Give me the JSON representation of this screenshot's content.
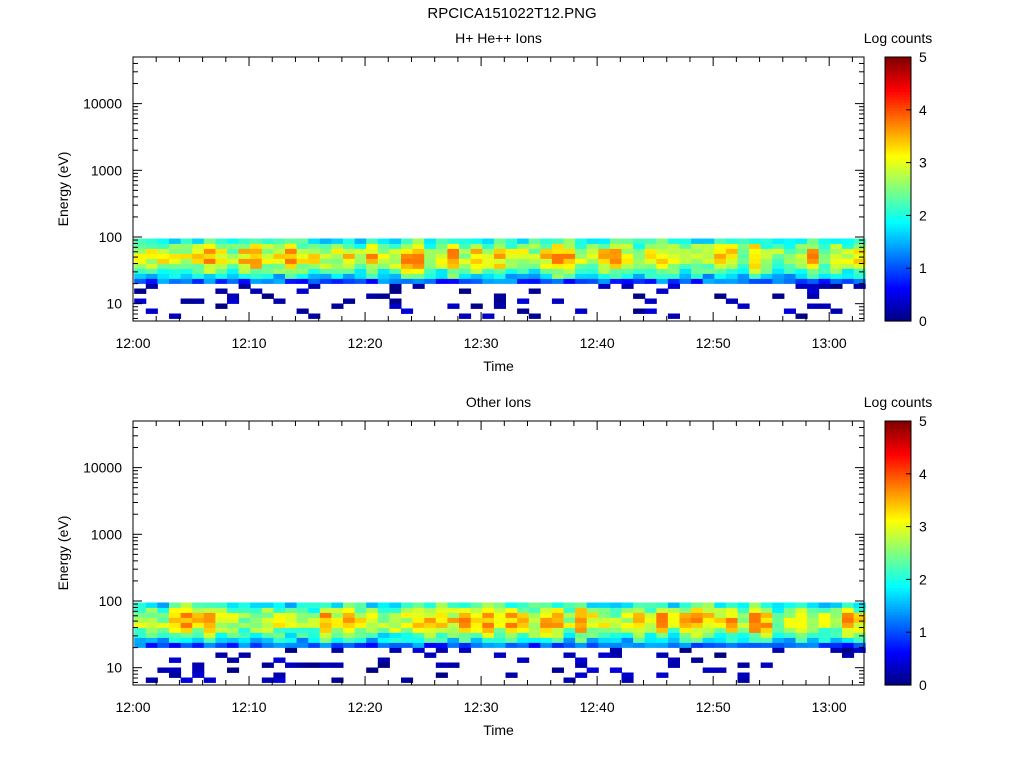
{
  "page": {
    "title": "RPCICA151022T12.PNG"
  },
  "chart_data": [
    {
      "type": "heatmap",
      "title": "H+ He++ Ions",
      "xlabel": "Time",
      "ylabel": "Energy (eV)",
      "x_range": [
        "12:00",
        "13:03"
      ],
      "x_ticks": [
        "12:00",
        "12:10",
        "12:20",
        "12:30",
        "12:40",
        "12:50",
        "13:00"
      ],
      "y_scale": "log",
      "y_range": [
        5.5,
        50000
      ],
      "y_ticks": [
        "10",
        "100",
        "1000",
        "10000"
      ],
      "colorbar": {
        "label": "Log counts",
        "range": [
          0,
          5
        ],
        "ticks": [
          "0",
          "1",
          "2",
          "3",
          "4",
          "5"
        ],
        "colormap": "jet"
      },
      "occupied_energy_range": [
        6,
        95
      ],
      "intensity_note": "Peak log counts ~3-3.7 around 40-70 eV; sparse low counts (~0-0.5) below 20 eV",
      "seed": 7
    },
    {
      "type": "heatmap",
      "title": "Other Ions",
      "xlabel": "Time",
      "ylabel": "Energy (eV)",
      "x_range": [
        "12:00",
        "13:03"
      ],
      "x_ticks": [
        "12:00",
        "12:10",
        "12:20",
        "12:30",
        "12:40",
        "12:50",
        "13:00"
      ],
      "y_scale": "log",
      "y_range": [
        5.5,
        50000
      ],
      "y_ticks": [
        "10",
        "100",
        "1000",
        "10000"
      ],
      "colorbar": {
        "label": "Log counts",
        "range": [
          0,
          5
        ],
        "ticks": [
          "0",
          "1",
          "2",
          "3",
          "4",
          "5"
        ],
        "colormap": "jet"
      },
      "occupied_energy_range": [
        6,
        95
      ],
      "intensity_note": "Peak log counts ~3-3.7 around 30-70 eV; sparse low counts (~0-0.5) below 20 eV",
      "seed": 23
    }
  ]
}
